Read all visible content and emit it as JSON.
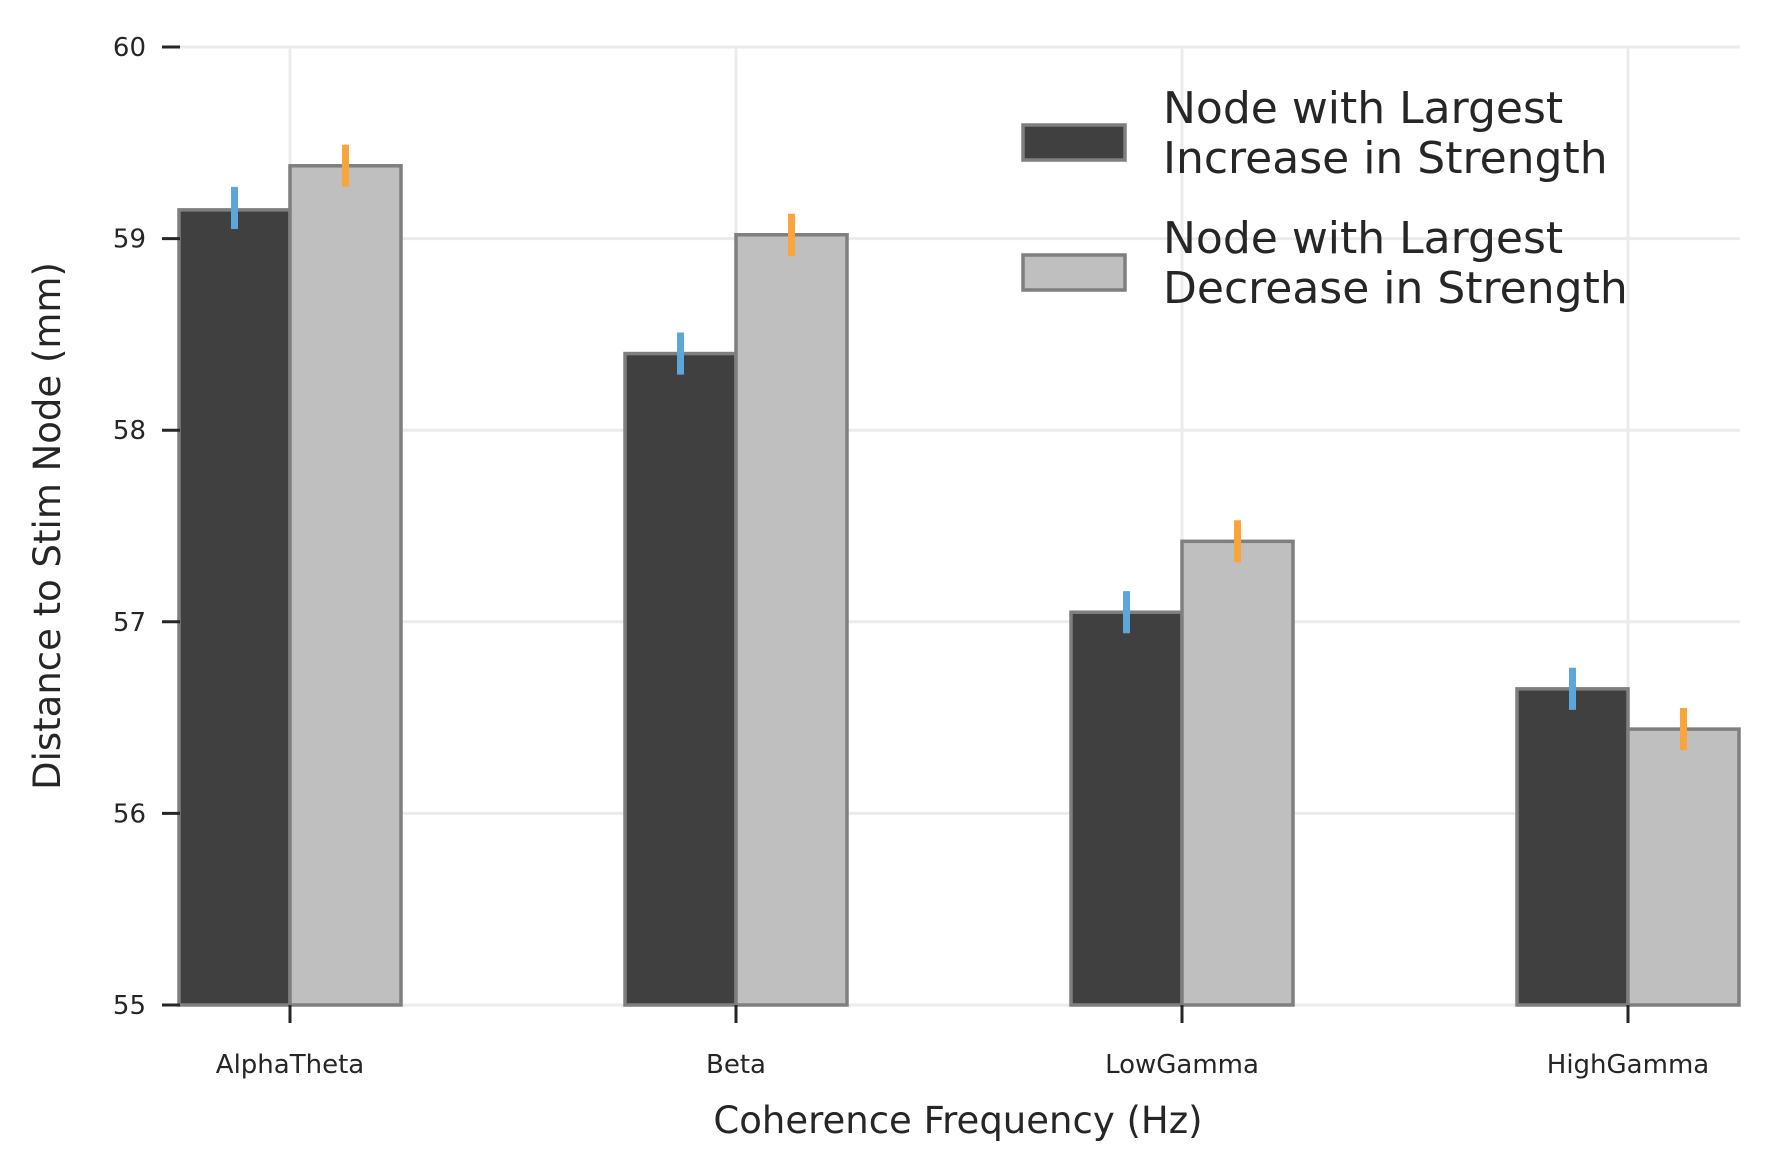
{
  "chart_data": {
    "type": "bar",
    "title": "",
    "xlabel": "Coherence Frequency (Hz)",
    "ylabel": "Distance to Stim Node (mm)",
    "categories": [
      "AlphaTheta",
      "Beta",
      "LowGamma",
      "HighGamma"
    ],
    "ylim": [
      55,
      60
    ],
    "yticks": [
      "55",
      "56",
      "57",
      "58",
      "59",
      "60"
    ],
    "grid": true,
    "legend_position": "top-right",
    "series": [
      {
        "name_lines": [
          "Node with Largest",
          "Increase in Strength"
        ],
        "values": [
          59.15,
          58.4,
          57.05,
          56.65
        ],
        "error_low": [
          59.05,
          58.29,
          56.94,
          56.54
        ],
        "error_high": [
          59.27,
          58.51,
          57.16,
          56.76
        ],
        "fill_color": "#404040",
        "edge_color": "#7f7f7f",
        "error_color": "#5da5da"
      },
      {
        "name_lines": [
          "Node with Largest",
          "Decrease in Strength"
        ],
        "values": [
          59.38,
          59.02,
          57.42,
          56.44
        ],
        "error_low": [
          59.27,
          58.91,
          57.31,
          56.33
        ],
        "error_high": [
          59.49,
          59.13,
          57.53,
          56.55
        ],
        "fill_color": "#bfbfbf",
        "edge_color": "#7f7f7f",
        "error_color": "#faa43a"
      }
    ]
  }
}
